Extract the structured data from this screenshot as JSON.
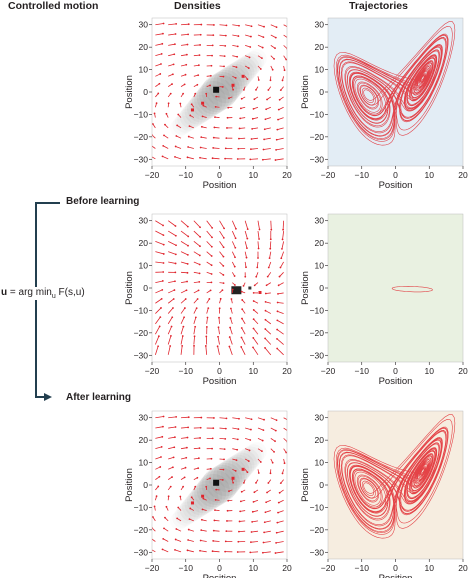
{
  "column_titles": {
    "controlled_motion": "Controlled motion",
    "densities": "Densities",
    "trajectories": "Trajectories"
  },
  "steps": {
    "before": "Before learning",
    "after": "After learning"
  },
  "equation": {
    "lhs": "u",
    "mid": " = arg min",
    "sub": "u",
    "rhs": " F(s,u)"
  },
  "axes": {
    "xlabel": "Position",
    "ylabel": "Position",
    "xticks": [
      -20,
      -10,
      0,
      10,
      20
    ],
    "yticks": [
      30,
      20,
      10,
      0,
      -10,
      -20,
      -30
    ],
    "xlim": [
      -20,
      20
    ],
    "ylim": [
      -33,
      33
    ]
  },
  "rows": [
    {
      "id": "top",
      "trajectory_type": "lorenz",
      "density_type": "diagonal",
      "background": "#e3edf5"
    },
    {
      "id": "before",
      "trajectory_type": "small-loop",
      "density_type": "point",
      "background": "#e9f1e1"
    },
    {
      "id": "after",
      "trajectory_type": "lorenz",
      "density_type": "diagonal",
      "background": "#f6ede0"
    }
  ],
  "colors": {
    "arrow": "#e0242c",
    "trajectory": "#e0242c",
    "arrow_line": "#233f4f"
  }
}
